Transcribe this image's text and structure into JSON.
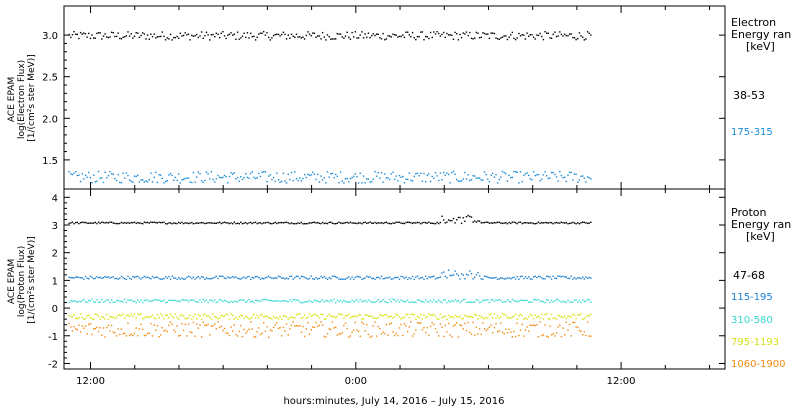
{
  "chart_data": [
    {
      "type": "scatter",
      "panel": "electron",
      "ylabel_lines": [
        "ACE EPAM",
        "log(Electron Flux)",
        "[1/(cm²s ster MeV)]"
      ],
      "ylim": [
        1.15,
        3.35
      ],
      "y_ticks": [
        1.5,
        2.0,
        2.5,
        3.0
      ],
      "y_tick_labels": [
        "1.5",
        "2.0",
        "2.5",
        "3.0"
      ],
      "legend_title_lines": [
        "Electron",
        "Energy ran",
        "[keV]"
      ],
      "series": [
        {
          "name": "38-53",
          "color": "#000000",
          "level": 3.0,
          "spread": 0.05,
          "x_start": -13.0,
          "x_end": 10.6
        },
        {
          "name": "175-315",
          "color": "#1a8ad8",
          "level": 1.3,
          "spread": 0.07,
          "x_start": -13.0,
          "x_end": 10.6
        }
      ]
    },
    {
      "type": "scatter",
      "panel": "proton",
      "ylabel_lines": [
        "ACE EPAM",
        "log(Proton Flux)",
        "[1/(cm²s ster MeV)]"
      ],
      "ylim": [
        -2.2,
        4.3
      ],
      "y_ticks": [
        -2,
        -1,
        0,
        1,
        2,
        3,
        4
      ],
      "y_tick_labels": [
        "-2",
        "-1",
        "0",
        "1",
        "2",
        "3",
        "4"
      ],
      "legend_title_lines": [
        "Proton",
        "Energy ran",
        "[keV]"
      ],
      "series": [
        {
          "name": "47-68",
          "color": "#000000",
          "level": 3.1,
          "spread": 0.03,
          "x_start": -13.0,
          "x_end": 10.6
        },
        {
          "name": "115-195",
          "color": "#1a7fd0",
          "level": 1.12,
          "spread": 0.06,
          "x_start": -13.0,
          "x_end": 10.6
        },
        {
          "name": "310-580",
          "color": "#3ad8d0",
          "level": 0.28,
          "spread": 0.06,
          "x_start": -13.0,
          "x_end": 10.6
        },
        {
          "name": "795-1193",
          "color": "#d8e010",
          "level": -0.28,
          "spread": 0.1,
          "x_start": -13.0,
          "x_end": 10.6
        },
        {
          "name": "1060-1900",
          "color": "#f08a10",
          "level": -0.75,
          "spread": 0.28,
          "x_start": -13.0,
          "x_end": 10.6
        }
      ]
    }
  ],
  "x_axis": {
    "xlim": [
      -13.2,
      16.7
    ],
    "major_ticks": [
      -12,
      0,
      12
    ],
    "tick_labels": [
      "12:00",
      "0:00",
      "12:00"
    ],
    "xlabel": "hours:minutes, July 14, 2016 – July 15, 2016"
  }
}
